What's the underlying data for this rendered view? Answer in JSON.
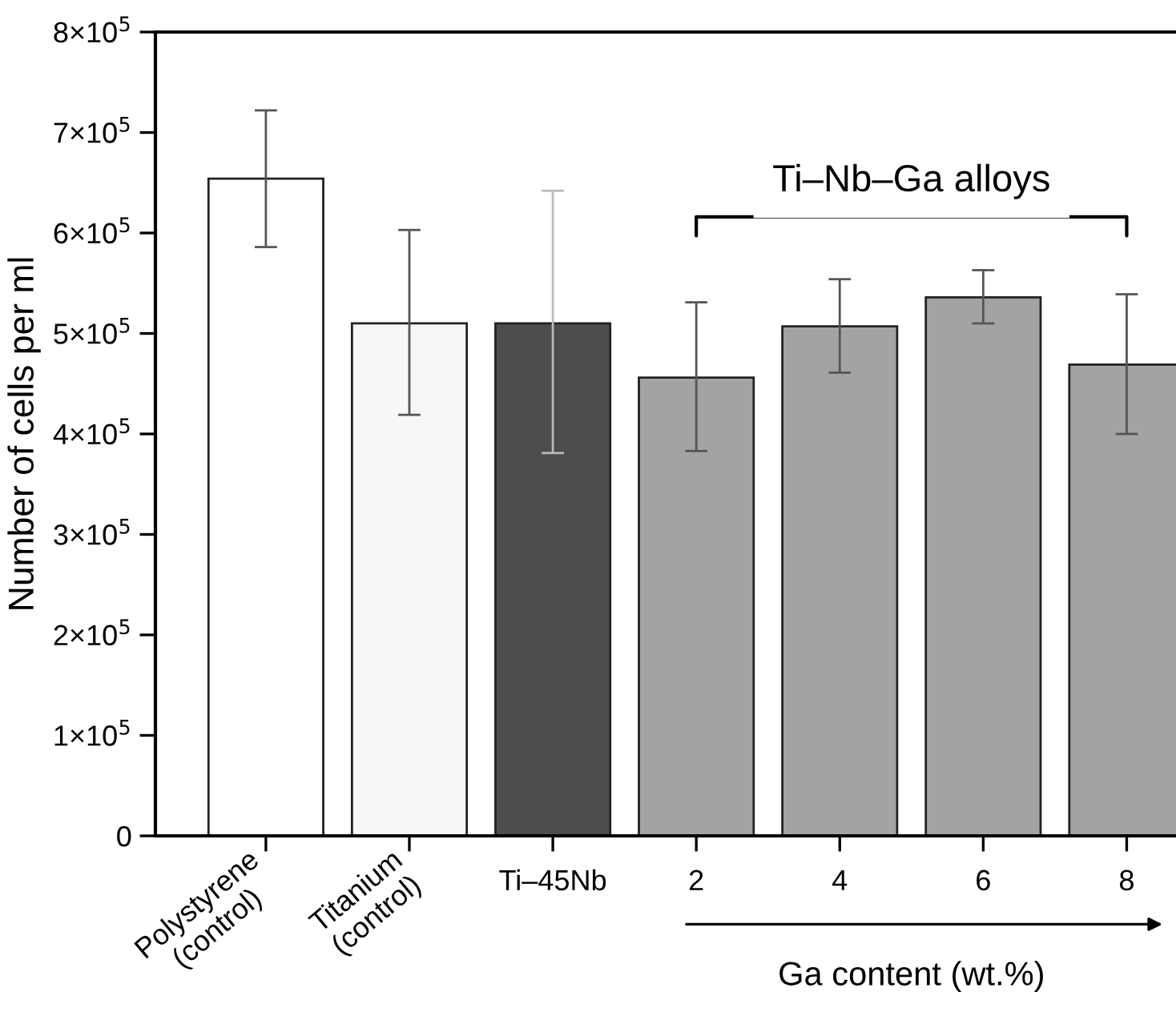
{
  "chart_data": {
    "type": "bar",
    "categories": [
      "Polystyrene\n(control)",
      "Titanium\n(control)",
      "Ti–45Nb",
      "2",
      "4",
      "6",
      "8"
    ],
    "values": [
      654000,
      510000,
      510000,
      456000,
      507000,
      536000,
      469000
    ],
    "errors": [
      [
        586000,
        722000
      ],
      [
        419000,
        603000
      ],
      [
        381000,
        642000
      ],
      [
        383000,
        531000
      ],
      [
        461000,
        554000
      ],
      [
        510000,
        563000
      ],
      [
        400000,
        539000
      ]
    ],
    "colors": [
      "#ffffff",
      "#f7f7f7",
      "#4d4d4d",
      "#a3a3a3",
      "#a3a3a3",
      "#a3a3a3",
      "#a3a3a3"
    ],
    "ylabel": "Number of cells per ml",
    "xlabel": "Ga content (wt.%)",
    "annotations": [
      "Ti–Nb–Ga alloys"
    ],
    "ylim": [
      0,
      800000
    ],
    "yticks": [
      0,
      {
        "value": 100000,
        "label": "1×10$^{5}$"
      },
      {
        "value": 200000,
        "label": "2×10$^{5}$"
      },
      {
        "value": 300000,
        "label": "3×10$^{5}$"
      },
      {
        "value": 400000,
        "label": "4×10$^{5}$"
      },
      {
        "value": 500000,
        "label": "5×10$^{5}$"
      },
      {
        "value": 600000,
        "label": "6×10$^{5}$"
      },
      {
        "value": 700000,
        "label": "7×10$^{5}$"
      },
      {
        "value": 800000,
        "label": "8×10$^{5}$"
      }
    ],
    "grid": false,
    "legend": false
  }
}
